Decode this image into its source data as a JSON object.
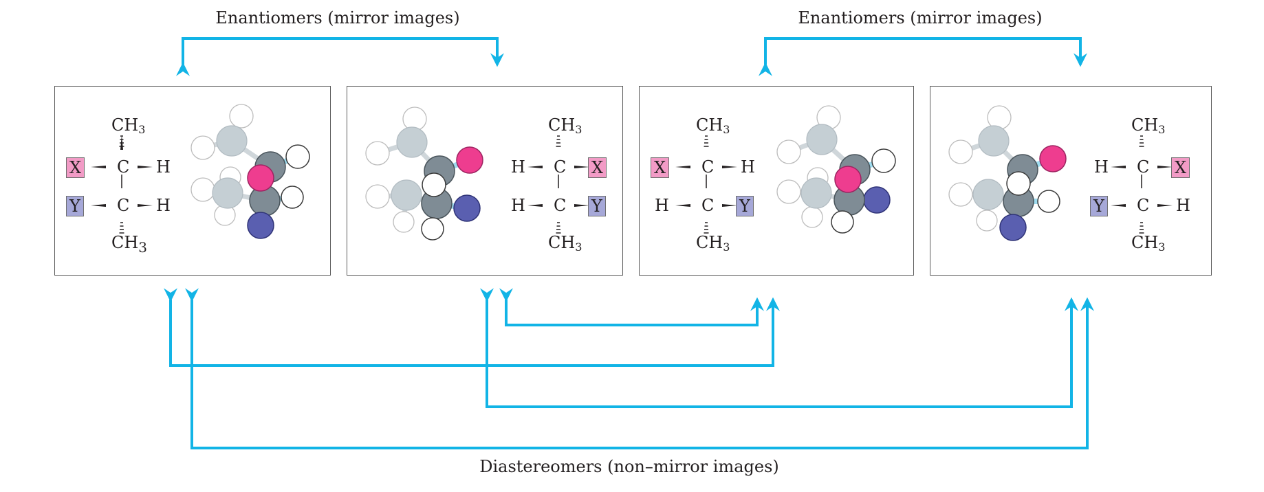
{
  "titles": {
    "enantiomers_left": "Enantiomers (mirror images)",
    "enantiomers_right": "Enantiomers (mirror images)",
    "diastereomers": "Diastereomers (non–mirror images)"
  },
  "labels": {
    "ch3_c": "CH",
    "ch3_sub": "3",
    "c": "C",
    "h": "H",
    "x": "X",
    "y": "Y"
  },
  "molecules": [
    {
      "id": 1,
      "top": {
        "left": "X",
        "right": "H"
      },
      "bottom": {
        "left": "Y",
        "right": "H"
      }
    },
    {
      "id": 2,
      "top": {
        "left": "H",
        "right": "X"
      },
      "bottom": {
        "left": "H",
        "right": "Y"
      }
    },
    {
      "id": 3,
      "top": {
        "left": "X",
        "right": "H"
      },
      "bottom": {
        "left": "H",
        "right": "Y"
      }
    },
    {
      "id": 4,
      "top": {
        "left": "H",
        "right": "X"
      },
      "bottom": {
        "left": "Y",
        "right": "H"
      }
    }
  ],
  "colors": {
    "arrow": "#12b4e6",
    "x_highlight": "#f29bc6",
    "y_highlight": "#a6a8d8",
    "x_atom": "#ee3d8f",
    "y_atom": "#5a5fb0",
    "carbon": "#7f8c95",
    "bond": "#9fdcef"
  }
}
